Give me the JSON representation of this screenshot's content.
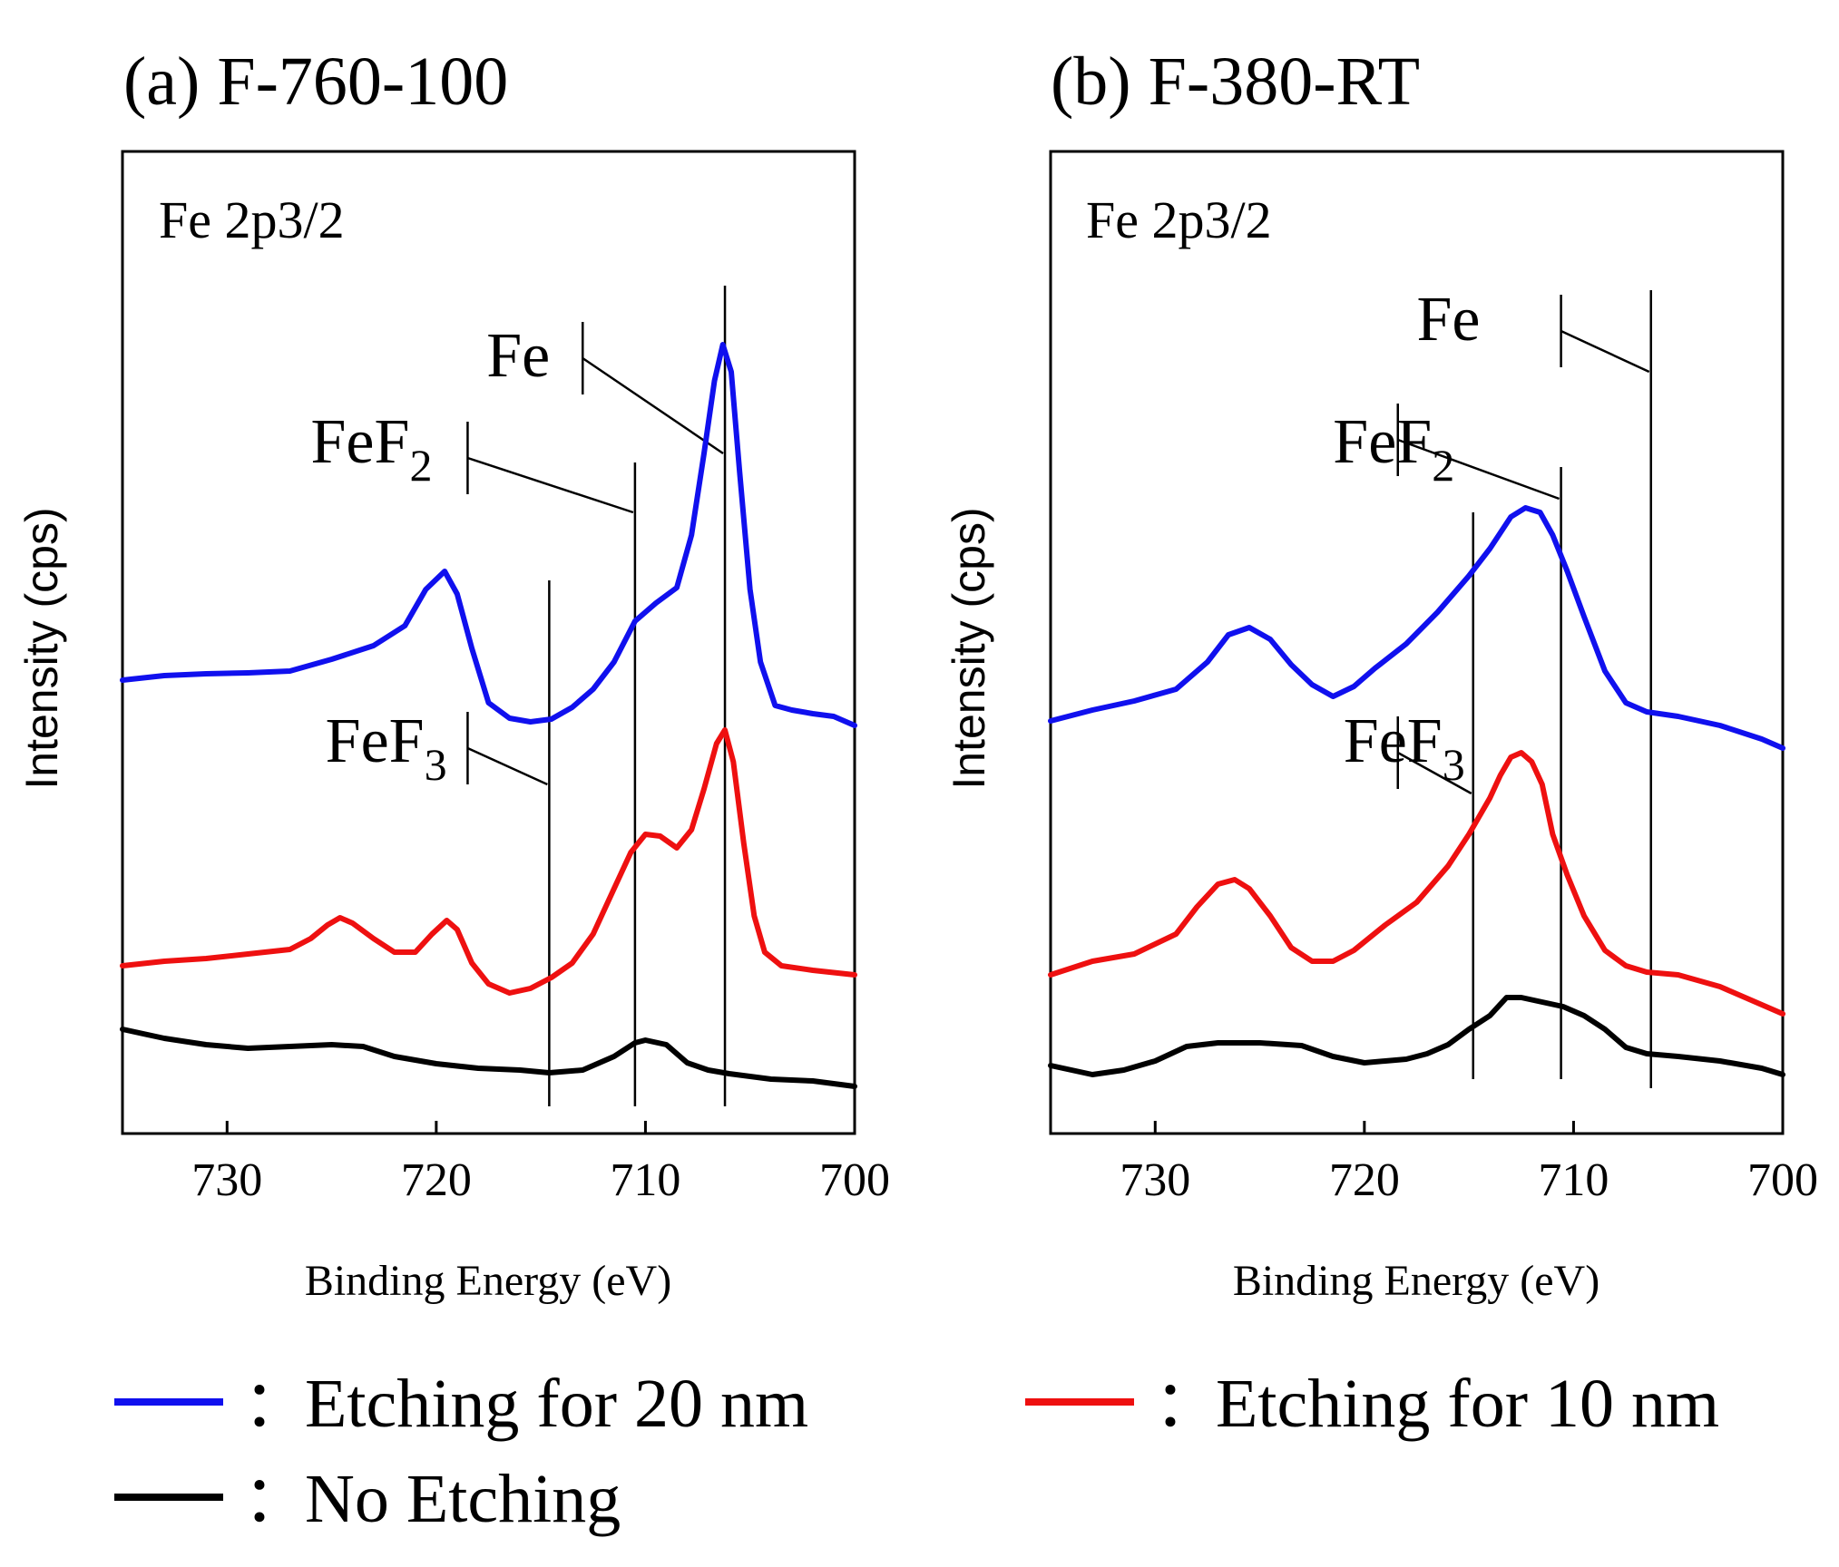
{
  "chart_data": [
    {
      "type": "line",
      "panel_title": "(a) F-760-100",
      "annotation": "Fe 2p3/2",
      "xlabel": "Binding Energy (eV)",
      "ylabel": "Intensity (cps)",
      "xlim": [
        735,
        700
      ],
      "ylim": [
        0,
        1
      ],
      "x_ticks": [
        {
          "value": 730,
          "label": "730"
        },
        {
          "value": 720,
          "label": "720"
        },
        {
          "value": 710,
          "label": "710"
        },
        {
          "value": 700,
          "label": "700"
        }
      ],
      "reference_lines": [
        {
          "name": "Fe",
          "base": "Fe",
          "sub": "",
          "energy": 706.2,
          "top": 0.905,
          "bottom": 0.0,
          "label_x": 717.6,
          "label_y": 0.805,
          "bracket_x": 713.0,
          "bracket_top": 0.865,
          "bracket_bottom": 0.785,
          "diag_end_y": 0.72
        },
        {
          "name": "FeF2",
          "base": "FeF",
          "sub": "2",
          "energy": 710.5,
          "top": 0.71,
          "bottom": 0.0,
          "label_x": 726.0,
          "label_y": 0.71,
          "bracket_x": 718.5,
          "bracket_top": 0.755,
          "bracket_bottom": 0.675,
          "diag_end_y": 0.655
        },
        {
          "name": "FeF3",
          "base": "FeF",
          "sub": "3",
          "energy": 714.6,
          "top": 0.58,
          "bottom": 0.0,
          "label_x": 725.3,
          "label_y": 0.38,
          "bracket_x": 718.5,
          "bracket_top": 0.435,
          "bracket_bottom": 0.355,
          "diag_end_y": 0.355
        }
      ],
      "series": [
        {
          "name": "Etching for 20 nm",
          "color": "#1010ee",
          "points": [
            [
              735,
              0.47
            ],
            [
              733,
              0.475
            ],
            [
              731,
              0.477
            ],
            [
              729,
              0.478
            ],
            [
              727,
              0.48
            ],
            [
              725,
              0.493
            ],
            [
              723,
              0.508
            ],
            [
              721.5,
              0.53
            ],
            [
              720.5,
              0.57
            ],
            [
              719.6,
              0.59
            ],
            [
              719,
              0.565
            ],
            [
              718.3,
              0.505
            ],
            [
              717.5,
              0.445
            ],
            [
              716.5,
              0.428
            ],
            [
              715.5,
              0.424
            ],
            [
              714.5,
              0.427
            ],
            [
              713.5,
              0.44
            ],
            [
              712.5,
              0.46
            ],
            [
              711.5,
              0.49
            ],
            [
              710.5,
              0.535
            ],
            [
              709.5,
              0.555
            ],
            [
              708.5,
              0.572
            ],
            [
              707.8,
              0.63
            ],
            [
              707.2,
              0.72
            ],
            [
              706.7,
              0.8
            ],
            [
              706.3,
              0.84
            ],
            [
              705.9,
              0.81
            ],
            [
              705.5,
              0.7
            ],
            [
              705,
              0.57
            ],
            [
              704.5,
              0.49
            ],
            [
              703.8,
              0.442
            ],
            [
              703,
              0.437
            ],
            [
              702,
              0.433
            ],
            [
              701,
              0.43
            ],
            [
              700,
              0.42
            ]
          ]
        },
        {
          "name": "Etching for 10 nm",
          "color": "#ee1010",
          "points": [
            [
              735,
              0.155
            ],
            [
              733,
              0.16
            ],
            [
              731,
              0.163
            ],
            [
              729,
              0.168
            ],
            [
              727,
              0.173
            ],
            [
              726,
              0.185
            ],
            [
              725.2,
              0.2
            ],
            [
              724.6,
              0.208
            ],
            [
              724,
              0.202
            ],
            [
              723,
              0.185
            ],
            [
              722,
              0.17
            ],
            [
              721,
              0.17
            ],
            [
              720.2,
              0.19
            ],
            [
              719.5,
              0.205
            ],
            [
              719,
              0.195
            ],
            [
              718.3,
              0.158
            ],
            [
              717.5,
              0.135
            ],
            [
              716.5,
              0.125
            ],
            [
              715.5,
              0.13
            ],
            [
              714.5,
              0.142
            ],
            [
              713.5,
              0.158
            ],
            [
              712.5,
              0.19
            ],
            [
              711.5,
              0.24
            ],
            [
              710.7,
              0.28
            ],
            [
              710,
              0.3
            ],
            [
              709.3,
              0.298
            ],
            [
              708.5,
              0.285
            ],
            [
              707.8,
              0.305
            ],
            [
              707.2,
              0.35
            ],
            [
              706.6,
              0.4
            ],
            [
              706.2,
              0.415
            ],
            [
              705.8,
              0.38
            ],
            [
              705.3,
              0.29
            ],
            [
              704.8,
              0.21
            ],
            [
              704.3,
              0.17
            ],
            [
              703.5,
              0.155
            ],
            [
              702,
              0.15
            ],
            [
              700,
              0.145
            ]
          ]
        },
        {
          "name": "No Etching",
          "color": "#000000",
          "points": [
            [
              735,
              0.085
            ],
            [
              733,
              0.075
            ],
            [
              731,
              0.068
            ],
            [
              729,
              0.064
            ],
            [
              727,
              0.066
            ],
            [
              725,
              0.068
            ],
            [
              723.5,
              0.066
            ],
            [
              722,
              0.055
            ],
            [
              720,
              0.047
            ],
            [
              718,
              0.042
            ],
            [
              716,
              0.04
            ],
            [
              714.6,
              0.037
            ],
            [
              713,
              0.04
            ],
            [
              711.5,
              0.055
            ],
            [
              710.5,
              0.07
            ],
            [
              710,
              0.073
            ],
            [
              709,
              0.068
            ],
            [
              708,
              0.048
            ],
            [
              707,
              0.04
            ],
            [
              706,
              0.036
            ],
            [
              704,
              0.03
            ],
            [
              702,
              0.028
            ],
            [
              700,
              0.022
            ]
          ]
        }
      ]
    },
    {
      "type": "line",
      "panel_title": "(b) F-380-RT",
      "annotation": "Fe 2p3/2",
      "xlabel": "Binding Energy (eV)",
      "ylabel": "Intensity (cps)",
      "xlim": [
        735,
        700
      ],
      "ylim": [
        0,
        1
      ],
      "x_ticks": [
        {
          "value": 730,
          "label": "730"
        },
        {
          "value": 720,
          "label": "720"
        },
        {
          "value": 710,
          "label": "710"
        },
        {
          "value": 700,
          "label": "700"
        }
      ],
      "reference_lines": [
        {
          "name": "Fe",
          "base": "Fe",
          "sub": "",
          "energy": 706.3,
          "top": 0.9,
          "bottom": 0.02,
          "label_x": 717.5,
          "label_y": 0.845,
          "bracket_x": 710.6,
          "bracket_top": 0.895,
          "bracket_bottom": 0.815,
          "diag_end_y": 0.81
        },
        {
          "name": "FeF2",
          "base": "FeF",
          "sub": "2",
          "energy": 710.6,
          "top": 0.705,
          "bottom": 0.03,
          "label_x": 721.5,
          "label_y": 0.71,
          "bracket_x": 718.4,
          "bracket_top": 0.775,
          "bracket_bottom": 0.695,
          "diag_end_y": 0.67
        },
        {
          "name": "FeF3",
          "base": "FeF",
          "sub": "3",
          "energy": 714.8,
          "top": 0.655,
          "bottom": 0.03,
          "label_x": 721.0,
          "label_y": 0.38,
          "bracket_x": 718.4,
          "bracket_top": 0.43,
          "bracket_bottom": 0.35,
          "diag_end_y": 0.345
        }
      ],
      "series": [
        {
          "name": "Etching for 20 nm",
          "color": "#1010ee",
          "points": [
            [
              735,
              0.425
            ],
            [
              733,
              0.437
            ],
            [
              731,
              0.447
            ],
            [
              729,
              0.46
            ],
            [
              727.5,
              0.49
            ],
            [
              726.5,
              0.52
            ],
            [
              725.5,
              0.528
            ],
            [
              724.5,
              0.515
            ],
            [
              723.5,
              0.487
            ],
            [
              722.5,
              0.465
            ],
            [
              721.5,
              0.452
            ],
            [
              720.5,
              0.463
            ],
            [
              719.5,
              0.483
            ],
            [
              718,
              0.51
            ],
            [
              716.5,
              0.545
            ],
            [
              715,
              0.585
            ],
            [
              714,
              0.615
            ],
            [
              713,
              0.65
            ],
            [
              712.3,
              0.66
            ],
            [
              711.6,
              0.655
            ],
            [
              711,
              0.63
            ],
            [
              710.3,
              0.59
            ],
            [
              709.5,
              0.54
            ],
            [
              708.5,
              0.48
            ],
            [
              707.5,
              0.445
            ],
            [
              706.5,
              0.435
            ],
            [
              705,
              0.43
            ],
            [
              703,
              0.42
            ],
            [
              701,
              0.405
            ],
            [
              700,
              0.395
            ]
          ]
        },
        {
          "name": "Etching for 10 nm",
          "color": "#ee1010",
          "points": [
            [
              735,
              0.145
            ],
            [
              733,
              0.16
            ],
            [
              731,
              0.168
            ],
            [
              729,
              0.19
            ],
            [
              728,
              0.22
            ],
            [
              727,
              0.245
            ],
            [
              726.2,
              0.25
            ],
            [
              725.5,
              0.24
            ],
            [
              724.5,
              0.21
            ],
            [
              723.5,
              0.175
            ],
            [
              722.5,
              0.16
            ],
            [
              721.5,
              0.16
            ],
            [
              720.5,
              0.172
            ],
            [
              719,
              0.2
            ],
            [
              717.5,
              0.225
            ],
            [
              716,
              0.265
            ],
            [
              715,
              0.3
            ],
            [
              714,
              0.34
            ],
            [
              713.5,
              0.365
            ],
            [
              713,
              0.385
            ],
            [
              712.5,
              0.39
            ],
            [
              712,
              0.38
            ],
            [
              711.5,
              0.355
            ],
            [
              711,
              0.3
            ],
            [
              710.3,
              0.255
            ],
            [
              709.5,
              0.21
            ],
            [
              708.5,
              0.172
            ],
            [
              707.5,
              0.155
            ],
            [
              706.5,
              0.148
            ],
            [
              705,
              0.145
            ],
            [
              703,
              0.132
            ],
            [
              701,
              0.112
            ],
            [
              700,
              0.102
            ]
          ]
        },
        {
          "name": "No Etching",
          "color": "#000000",
          "points": [
            [
              735,
              0.045
            ],
            [
              733,
              0.035
            ],
            [
              731.5,
              0.04
            ],
            [
              730,
              0.05
            ],
            [
              728.5,
              0.066
            ],
            [
              727,
              0.07
            ],
            [
              725,
              0.07
            ],
            [
              723,
              0.067
            ],
            [
              721.5,
              0.055
            ],
            [
              720,
              0.048
            ],
            [
              719,
              0.05
            ],
            [
              718,
              0.052
            ],
            [
              717,
              0.058
            ],
            [
              716,
              0.068
            ],
            [
              715,
              0.085
            ],
            [
              714,
              0.1
            ],
            [
              713.2,
              0.12
            ],
            [
              712.5,
              0.12
            ],
            [
              711.5,
              0.115
            ],
            [
              710.5,
              0.11
            ],
            [
              709.5,
              0.1
            ],
            [
              708.5,
              0.085
            ],
            [
              707.5,
              0.065
            ],
            [
              706.5,
              0.058
            ],
            [
              705,
              0.055
            ],
            [
              703,
              0.05
            ],
            [
              701,
              0.042
            ],
            [
              700,
              0.035
            ]
          ]
        }
      ]
    }
  ],
  "legend": {
    "separator": "：",
    "items": [
      {
        "label": "Etching for 20 nm",
        "color": "#1010ee"
      },
      {
        "label": "Etching for 10 nm",
        "color": "#ee1010"
      },
      {
        "label": "No Etching",
        "color": "#000000"
      }
    ]
  }
}
